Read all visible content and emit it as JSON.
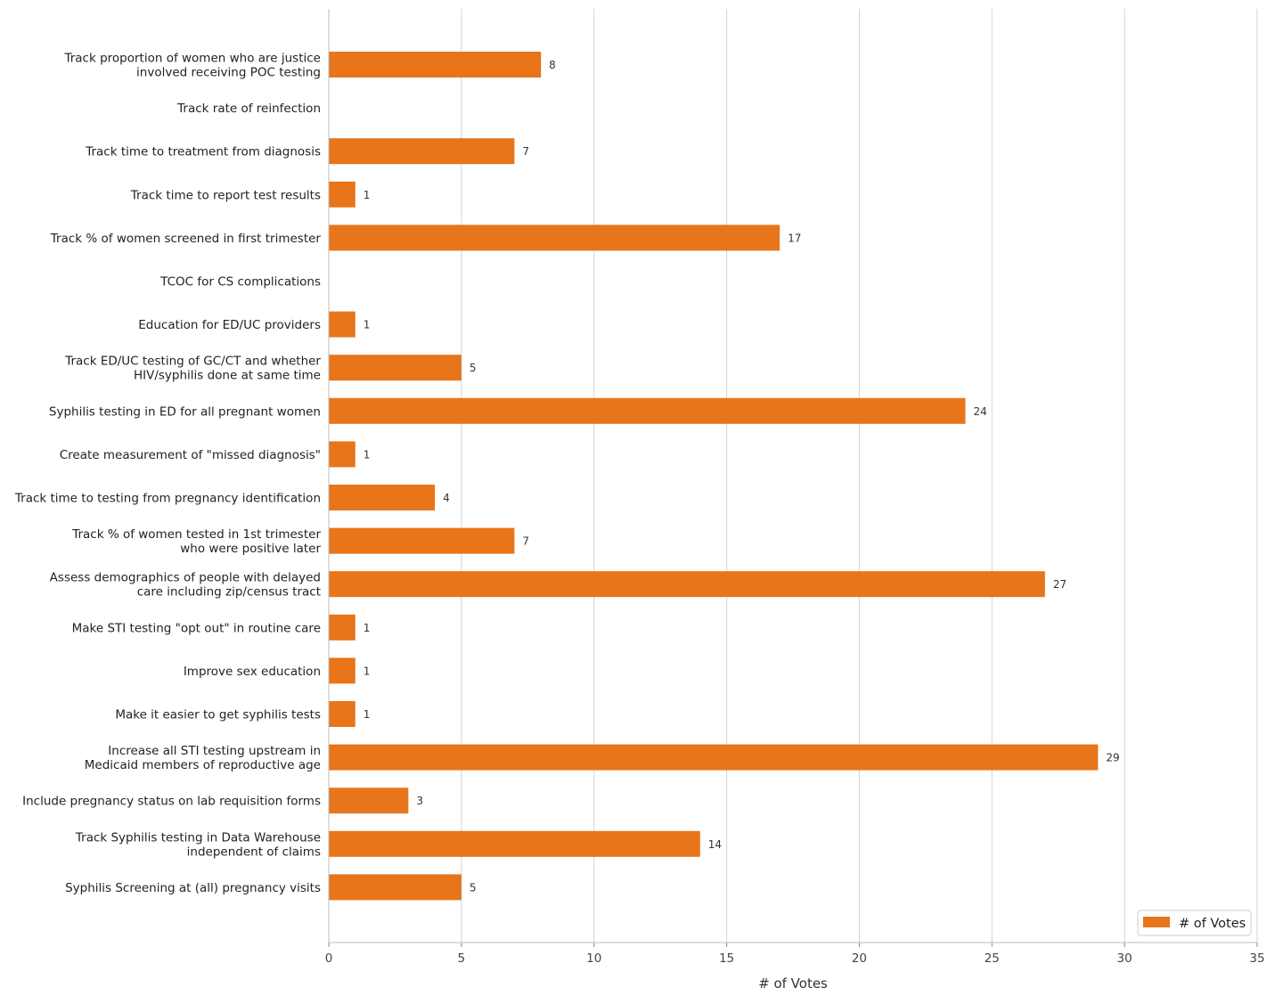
{
  "chart_data": {
    "type": "bar",
    "orientation": "horizontal",
    "title": "",
    "xlabel": "# of Votes",
    "ylabel": "",
    "xlim": [
      0,
      35
    ],
    "xticks": [
      0,
      5,
      10,
      15,
      20,
      25,
      30,
      35
    ],
    "grid": "vertical",
    "legend": {
      "position": "bottom-right",
      "entries": [
        "# of Votes"
      ]
    },
    "bar_color": "#E8751A",
    "categories": [
      "Track proportion of women who are justice\ninvolved receiving POC testing",
      "Track rate of reinfection",
      "Track time to treatment from diagnosis",
      "Track time to report test results",
      "Track % of women screened in first trimester",
      "TCOC for CS complications",
      "Education for ED/UC providers",
      "Track ED/UC testing of GC/CT and whether\nHIV/syphilis done at same time",
      "Syphilis testing in ED for all pregnant women",
      "Create measurement of \"missed diagnosis\"",
      "Track time to testing from pregnancy identification",
      "Track % of women tested in 1st trimester\nwho were positive later",
      "Assess demographics of people with delayed\ncare including zip/census tract",
      "Make STI testing \"opt out\" in routine care",
      "Improve sex education",
      "Make it easier to get syphilis tests",
      "Increase all STI testing upstream in\nMedicaid members of reproductive age",
      "Include pregnancy status on lab requisition forms",
      "Track Syphilis testing in Data Warehouse\nindependent of claims",
      "Syphilis Screening at (all) pregnancy visits"
    ],
    "series": [
      {
        "name": "# of Votes",
        "values": [
          8,
          0,
          7,
          1,
          17,
          0,
          1,
          5,
          24,
          1,
          4,
          7,
          27,
          1,
          1,
          1,
          29,
          3,
          14,
          5
        ]
      }
    ],
    "data_labels": [
      "8",
      "",
      "7",
      "1",
      "17",
      "",
      "1",
      "5",
      "24",
      "1",
      "4",
      "7",
      "27",
      "1",
      "1",
      "1",
      "29",
      "3",
      "14",
      "5"
    ]
  }
}
